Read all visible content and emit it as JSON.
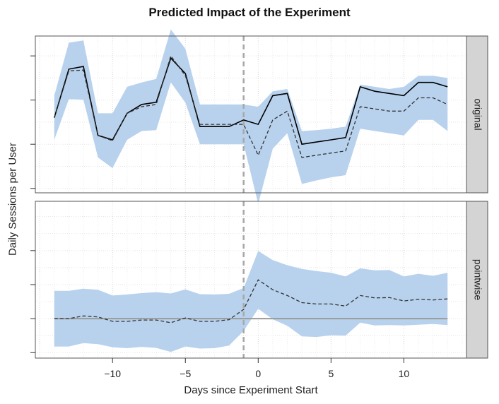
{
  "chart_data": {
    "type": "line",
    "title": "Predicted Impact of the Experiment",
    "xlabel": "Days since Experiment Start",
    "ylabel": "Daily Sessions per User",
    "xlim": [
      -15.3,
      14.3
    ],
    "xticks": [
      -10,
      -5,
      0,
      5,
      10
    ],
    "xtick_labels": [
      "−10",
      "−5",
      "0",
      "5",
      "10"
    ],
    "intervention_x": -1,
    "grid": true,
    "x": [
      -14,
      -13,
      -12,
      -11,
      -10,
      -9,
      -8,
      -7,
      -6,
      -5,
      -4,
      -3,
      -2,
      -1,
      0,
      1,
      2,
      3,
      4,
      5,
      6,
      7,
      8,
      9,
      10,
      11,
      12,
      13
    ],
    "panels": [
      {
        "label": "original",
        "ylim": [
          0,
          35.5
        ],
        "yticks": [
          1,
          11,
          21,
          31
        ],
        "series": [
          {
            "values": [
              17,
              28,
              28.6,
              13,
              12,
              18,
              20,
              20.5,
              30.5,
              27,
              15,
              15,
              15,
              16.5,
              15.5,
              22,
              22.5,
              11,
              11.5,
              12,
              12.5,
              24,
              23,
              22.5,
              22,
              25,
              25,
              24
            ]
          },
          {
            "values": [
              17,
              27.6,
              27.8,
              13,
              11.8,
              18,
              19.5,
              20,
              31,
              26.5,
              15.5,
              15.5,
              15.5,
              15.5,
              8.5,
              16.5,
              18.5,
              8,
              8.5,
              9,
              9.5,
              19.5,
              19,
              18.5,
              18.5,
              21.5,
              21.5,
              20
            ]
          }
        ],
        "band_upper": [
          22,
          34,
          34.5,
          18,
          18,
          24,
          25,
          25.8,
          37,
          32.6,
          20,
          20,
          20,
          20,
          19.5,
          23,
          23.5,
          14,
          14.2,
          14.5,
          15,
          24.5,
          24,
          23.5,
          24,
          26.5,
          26.5,
          26
        ]
      },
      {
        "label": "pointwise",
        "ylim": [
          -1.16,
          3.45
        ],
        "yticks": [
          -1,
          0,
          1,
          2
        ],
        "zero_line": 0,
        "series": [
          {
            "values": [
              0,
              0,
              0.08,
              0.05,
              -0.08,
              -0.08,
              -0.04,
              -0.04,
              -0.12,
              0.02,
              -0.08,
              -0.08,
              -0.03,
              0.27,
              1.14,
              0.85,
              0.68,
              0.47,
              0.43,
              0.43,
              0.37,
              0.68,
              0.61,
              0.62,
              0.52,
              0.57,
              0.55,
              0.58
            ]
          }
        ],
        "band_upper": [
          0.82,
          0.82,
          0.88,
          0.85,
          0.68,
          0.71,
          0.75,
          0.78,
          0.74,
          0.86,
          0.72,
          0.71,
          0.73,
          0.9,
          1.99,
          1.72,
          1.57,
          1.46,
          1.4,
          1.35,
          1.24,
          1.48,
          1.42,
          1.43,
          1.24,
          1.32,
          1.26,
          1.35
        ]
      }
    ]
  }
}
